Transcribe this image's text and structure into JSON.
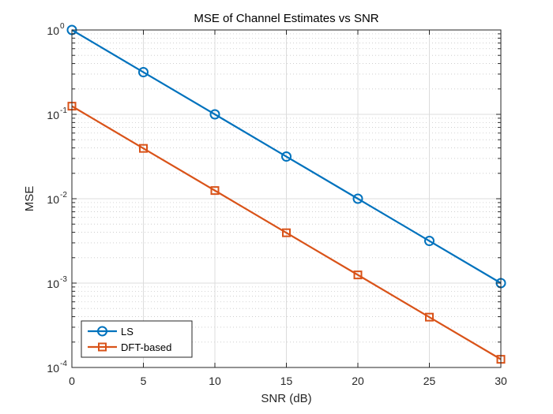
{
  "chart_data": {
    "type": "line",
    "title": "MSE of Channel Estimates vs SNR",
    "xlabel": "SNR (dB)",
    "ylabel": "MSE",
    "xscale": "linear",
    "yscale": "log",
    "xlim": [
      0,
      30
    ],
    "ylim": [
      0.0001,
      1
    ],
    "xticks": [
      0,
      5,
      10,
      15,
      20,
      25,
      30
    ],
    "xtick_labels": [
      "0",
      "5",
      "10",
      "15",
      "20",
      "25",
      "30"
    ],
    "yticks": [
      1,
      0.1,
      0.01,
      0.001,
      0.0001
    ],
    "ytick_labels": [
      {
        "base": "10",
        "exp": "0"
      },
      {
        "base": "10",
        "exp": "-1"
      },
      {
        "base": "10",
        "exp": "-2"
      },
      {
        "base": "10",
        "exp": "-3"
      },
      {
        "base": "10",
        "exp": "-4"
      }
    ],
    "grid": true,
    "minor_grid": true,
    "legend_position": "bottom-left",
    "x": [
      0,
      5,
      10,
      15,
      20,
      25,
      30
    ],
    "series": [
      {
        "name": "LS",
        "color": "#0072BD",
        "marker": "circle",
        "values": [
          1,
          0.316,
          0.1,
          0.0316,
          0.01,
          0.00316,
          0.001
        ]
      },
      {
        "name": "DFT-based",
        "color": "#D95319",
        "marker": "square",
        "values": [
          0.125,
          0.0395,
          0.0125,
          0.00395,
          0.00125,
          0.000395,
          0.000125
        ]
      }
    ]
  }
}
